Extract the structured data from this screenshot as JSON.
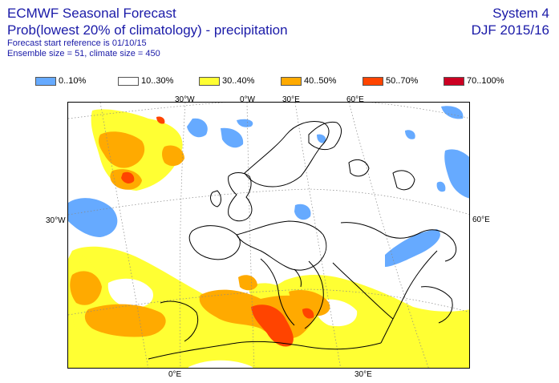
{
  "header": {
    "title": "ECMWF Seasonal Forecast",
    "subtitle": "Prob(lowest 20% of climatology) - precipitation",
    "forecast_start": "Forecast start reference is 01/10/15",
    "ensemble": "Ensemble size = 51, climate size = 450",
    "system": "System 4",
    "season": "DJF 2015/16"
  },
  "legend": [
    {
      "label": "0..10%",
      "color": "#66aaff"
    },
    {
      "label": "10..30%",
      "color": "#ffffff"
    },
    {
      "label": "30..40%",
      "color": "#ffff33"
    },
    {
      "label": "40..50%",
      "color": "#ffaa00"
    },
    {
      "label": "50..70%",
      "color": "#ff4400"
    },
    {
      "label": "70..100%",
      "color": "#cc0022"
    }
  ],
  "map": {
    "top_labels": [
      "30°W",
      "0°W",
      "30°E",
      "60°E"
    ],
    "left_label": "30°W",
    "right_label": "60°E",
    "bottom_labels": [
      "0°E",
      "30°E"
    ]
  }
}
